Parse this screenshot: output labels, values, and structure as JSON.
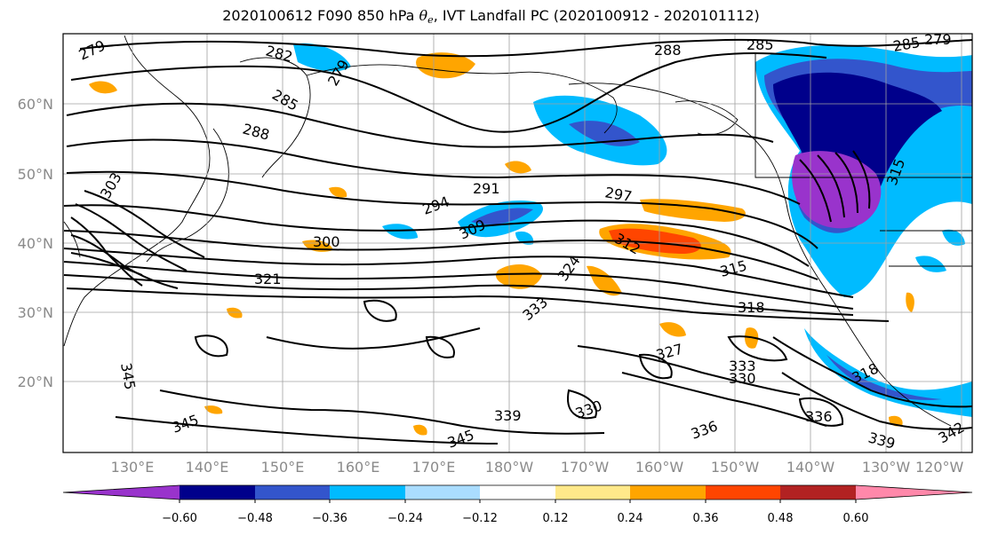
{
  "title": {
    "prefix": "2020100612 F090 850 hPa ",
    "symbol": "θ",
    "subscript": "e",
    "suffix": ", IVT Landfall PC (2020100912 - 2020101112)"
  },
  "map": {
    "lat_labels": [
      "60°N",
      "50°N",
      "40°N",
      "30°N",
      "20°N"
    ],
    "lon_labels": [
      "130°E",
      "140°E",
      "150°E",
      "160°E",
      "170°E",
      "180°W",
      "170°W",
      "160°W",
      "150°W",
      "140°W",
      "130°W",
      "120°W"
    ],
    "contour_labels": [
      "279",
      "282",
      "279",
      "285",
      "288",
      "288",
      "285",
      "285",
      "279",
      "291",
      "294",
      "297",
      "300",
      "303",
      "309",
      "312",
      "315",
      "318",
      "321",
      "324",
      "327",
      "330",
      "333",
      "333",
      "336",
      "339",
      "342",
      "345",
      "345",
      "345",
      "315",
      "318",
      "330",
      "336",
      "339"
    ]
  },
  "colorbar": {
    "colors": [
      "#9933cc",
      "#00008b",
      "#3355cc",
      "#00bbff",
      "#aaddff",
      "#ffffff",
      "#ffe98a",
      "#ffa500",
      "#ff4500",
      "#b22222",
      "#ff88aa"
    ],
    "ticks": [
      "−0.60",
      "−0.48",
      "−0.36",
      "−0.24",
      "−0.12",
      "0.12",
      "0.24",
      "0.36",
      "0.48",
      "0.60"
    ]
  }
}
